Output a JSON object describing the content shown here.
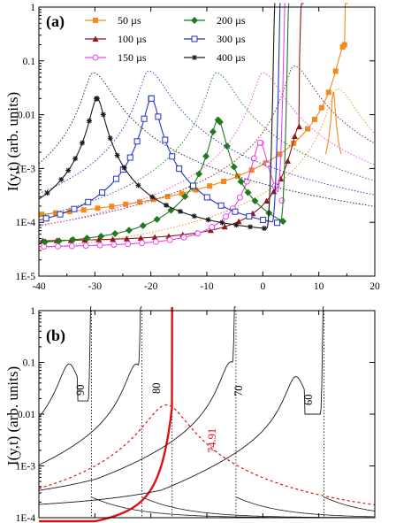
{
  "chart_data": [
    {
      "panel": "(a)",
      "type": "line",
      "ylabel": "I(y,t) (arb. units)",
      "xlabel": "",
      "xlim": [
        -40,
        20
      ],
      "ylim": [
        1e-05,
        1
      ],
      "yscale": "log",
      "x_ticks": [
        "-40",
        "-30",
        "-20",
        "-10",
        "0",
        "10",
        "20"
      ],
      "y_ticks": [
        "1E-5",
        "1E-4",
        "1E-3",
        "0.01",
        "0.1",
        "1"
      ],
      "legend_position": "top",
      "series": [
        {
          "name": "50 µs",
          "color": "#f28a1e",
          "marker": "square-filled",
          "peak_x": 14.6,
          "peak_y": 0.2,
          "base_y": 5.8e-05,
          "edge_x": 15.2,
          "secondary_peak": [
            12.6,
            0.026
          ],
          "dashed_peak": [
            13.3,
            0.03
          ]
        },
        {
          "name": "100 µs",
          "color": "#8b1a1a",
          "marker": "triangle-filled",
          "peak_x": 6.5,
          "peak_y": 0.006,
          "base_y": 4.2e-05,
          "edge_x": 7.3,
          "dashed_peak": [
            5.6,
            0.08
          ]
        },
        {
          "name": "150 µs",
          "color": "#ee44ee",
          "marker": "circle-open",
          "peak_x": -0.5,
          "peak_y": 0.003,
          "base_y": 3.3e-05,
          "edge_x": 4.1,
          "dashed_peak": [
            0.0,
            0.06
          ]
        },
        {
          "name": "200 µs",
          "color": "#1f7a1f",
          "marker": "diamond-filled",
          "peak_x": -8.0,
          "peak_y": 0.008,
          "base_y": 3.3e-05,
          "edge_x": 4.7,
          "dashed_peak": [
            -8.3,
            0.06
          ]
        },
        {
          "name": "300 µs",
          "color": "#2233cc",
          "marker": "square-open",
          "peak_x": -19.9,
          "peak_y": 0.02,
          "base_y": 5e-05,
          "edge_x": 3.2,
          "dashed_peak": [
            -20.4,
            0.065
          ]
        },
        {
          "name": "400 µs",
          "color": "#1a1a1a",
          "marker": "star",
          "peak_x": -29.6,
          "peak_y": 0.02,
          "base_y": 5e-05,
          "edge_x": 2.2,
          "dashed_peak": [
            -30.3,
            0.06
          ]
        }
      ]
    },
    {
      "panel": "(b)",
      "type": "line",
      "ylabel": "I(y,t) (arb. units)",
      "xlabel": "",
      "xlim": [
        -40,
        20
      ],
      "ylim": [
        0.0001,
        1
      ],
      "yscale": "log",
      "y_ticks": [
        "1E-4",
        "1E-3",
        "0.01",
        "0.1",
        "1"
      ],
      "series": [
        {
          "name": "90",
          "color": "#1a1a1a",
          "peak_x": -34.6,
          "peak_y": 0.09,
          "edge_x": -30.6,
          "vline_x": -30.6
        },
        {
          "name": "80",
          "color": "#1a1a1a",
          "peak_x": -22.6,
          "peak_y": 0.09,
          "edge_x": -21.6,
          "vline_x": -21.6
        },
        {
          "name": "74.91",
          "color": "#dd1111",
          "style": "thick",
          "edge_x": -16.2,
          "vline_x": -16.2
        },
        {
          "name": "74.91 dashed",
          "color": "#dd1111",
          "style": "dashed",
          "peak_x": -17.2,
          "peak_y": 0.015
        },
        {
          "name": "70",
          "color": "#1a1a1a",
          "peak_x": -5.7,
          "peak_y": 0.1,
          "edge_x": -4.8,
          "vline_x": -4.8
        },
        {
          "name": "60",
          "color": "#1a1a1a",
          "peak_x": 5.9,
          "peak_y": 0.05,
          "edge_x": 10.9,
          "vline_x": 10.9
        }
      ]
    }
  ],
  "panel_a": {
    "label": "(a)",
    "ylabel": "I(y,t) (arb. units)",
    "legend": [
      "50 µs",
      "100 µs",
      "150 µs",
      "200 µs",
      "300 µs",
      "400 µs"
    ]
  },
  "panel_b": {
    "label": "(b)",
    "ylabel": "I(y,t) (arb. units)",
    "curve_labels": [
      "90",
      "80",
      "74.91",
      "70",
      "60"
    ]
  }
}
